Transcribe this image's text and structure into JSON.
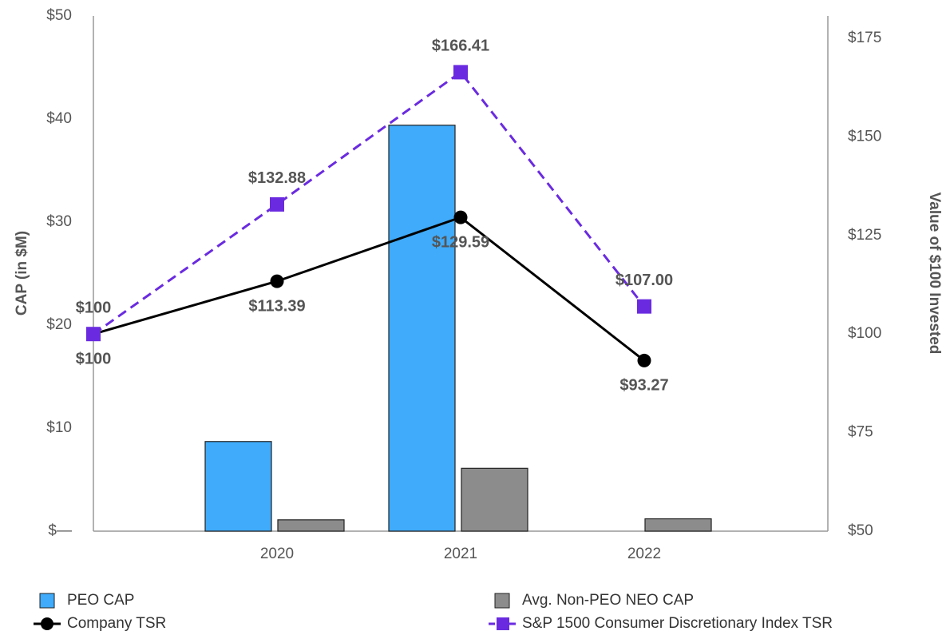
{
  "chart_data": {
    "type": "combo",
    "categories": [
      null,
      "2020",
      "2021",
      "2022"
    ],
    "ylabel": "CAP (in $M)",
    "y2label": "Value of $100 Invested",
    "ylim": [
      0,
      50
    ],
    "yticks": [
      {
        "value": 0,
        "label": "$—"
      },
      {
        "value": 10,
        "label": "$10"
      },
      {
        "value": 20,
        "label": "$20"
      },
      {
        "value": 30,
        "label": "$30"
      },
      {
        "value": 40,
        "label": "$40"
      },
      {
        "value": 50,
        "label": "$50"
      }
    ],
    "y2lim": [
      50,
      175
    ],
    "y2ticks": [
      {
        "value": 50,
        "label": "$50"
      },
      {
        "value": 75,
        "label": "$75"
      },
      {
        "value": 100,
        "label": "$100"
      },
      {
        "value": 125,
        "label": "$125"
      },
      {
        "value": 150,
        "label": "$150"
      },
      {
        "value": 175,
        "label": "$175"
      }
    ],
    "series": [
      {
        "name": "PEO CAP",
        "type": "bar",
        "color": "#3fabfa",
        "values": [
          null,
          8.7,
          39.4,
          null
        ]
      },
      {
        "name": "Avg. Non-PEO NEO CAP",
        "type": "bar",
        "color": "#8c8c8c",
        "values": [
          null,
          1.1,
          6.1,
          1.2
        ]
      },
      {
        "name": "Company TSR",
        "type": "line",
        "axis": "y2",
        "color": "#000000",
        "values": [
          100,
          113.39,
          129.59,
          93.27
        ],
        "value_labels": [
          "$100",
          "$113.39",
          "$129.59",
          "$93.27"
        ]
      },
      {
        "name": "S&P 1500 Consumer Discretionary Index TSR",
        "type": "line",
        "axis": "y2",
        "color": "#6a2be0",
        "dashed": true,
        "values": [
          100,
          132.88,
          166.41,
          107.0
        ],
        "value_labels": [
          "$100",
          "$132.88",
          "$166.41",
          "$107.00"
        ]
      }
    ]
  }
}
